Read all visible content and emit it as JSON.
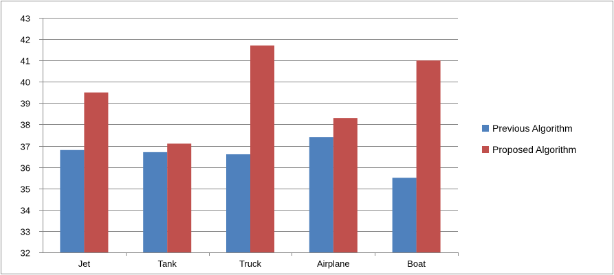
{
  "chart_data": {
    "type": "bar",
    "title": "",
    "xlabel": "",
    "ylabel": "",
    "categories": [
      "Jet",
      "Tank",
      "Truck",
      "Airplane",
      "Boat"
    ],
    "series": [
      {
        "name": "Previous Algorithm",
        "color": "#4f81bd",
        "values": [
          36.8,
          36.7,
          36.6,
          37.4,
          35.5
        ]
      },
      {
        "name": "Proposed Algorithm",
        "color": "#c0504d",
        "values": [
          39.5,
          37.1,
          41.7,
          38.3,
          41.0
        ]
      }
    ],
    "ylim": [
      32,
      43
    ],
    "yticks": [
      32,
      33,
      34,
      35,
      36,
      37,
      38,
      39,
      40,
      41,
      42,
      43
    ],
    "grid": true,
    "legend_position": "right"
  }
}
